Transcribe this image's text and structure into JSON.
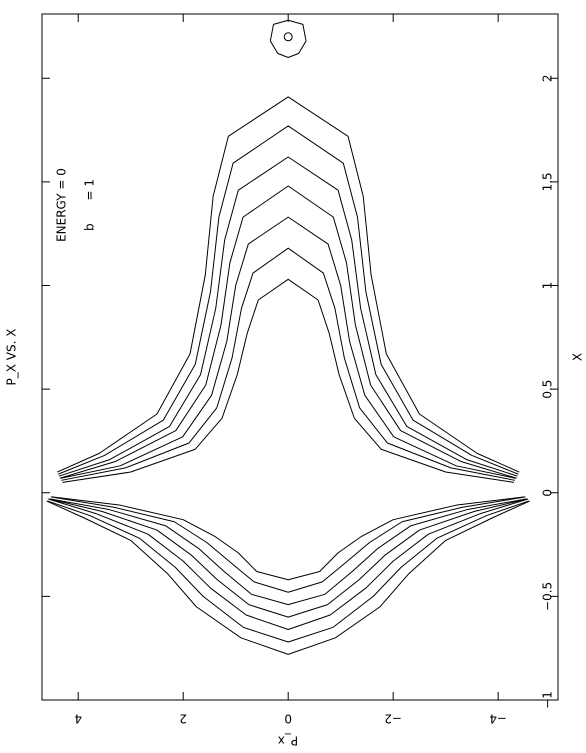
{
  "chart_data": {
    "type": "line",
    "title": "P_X VS. X",
    "x_label": "X",
    "y_label": "P_x",
    "annotations": [
      "ENERGY = 0",
      "b      = 1"
    ],
    "xlim": [
      -1,
      2.31
    ],
    "xticks": [
      {
        "value": -1,
        "label": "−1"
      },
      {
        "value": -0.5,
        "label": "−0.5"
      },
      0,
      0.5,
      1,
      1.5,
      2
    ],
    "ylim": [
      -5.14,
      4.69
    ],
    "yticks": [
      {
        "value": -4,
        "label": "−4"
      },
      {
        "value": -2,
        "label": "−2"
      },
      0,
      2,
      4
    ],
    "color": "#000000",
    "series": [
      {
        "x": [
          0.05,
          0.1,
          0.21,
          0.36,
          0.57,
          0.77,
          0.93,
          1.03,
          0.93,
          0.77,
          0.57,
          0.36,
          0.21,
          0.1,
          0.05
        ],
        "values": [
          4.3,
          3.0,
          1.77,
          1.26,
          0.97,
          0.78,
          0.57,
          0,
          -0.57,
          -0.78,
          -0.97,
          -1.26,
          -1.77,
          -3.0,
          -4.3
        ]
      },
      {
        "x": [
          0.06,
          0.12,
          0.24,
          0.41,
          0.65,
          0.89,
          1.06,
          1.18,
          1.06,
          0.89,
          0.65,
          0.41,
          0.24,
          0.12,
          0.06
        ],
        "values": [
          4.32,
          3.1,
          1.89,
          1.36,
          1.07,
          0.89,
          0.67,
          0,
          -0.67,
          -0.89,
          -1.07,
          -1.36,
          -1.89,
          -3.1,
          -4.32
        ]
      },
      {
        "x": [
          0.07,
          0.13,
          0.27,
          0.47,
          0.73,
          1.0,
          1.2,
          1.33,
          1.2,
          1.0,
          0.73,
          0.47,
          0.27,
          0.13,
          0.07
        ],
        "values": [
          4.33,
          3.2,
          2.01,
          1.46,
          1.17,
          1.0,
          0.76,
          0,
          -0.76,
          -1.0,
          -1.17,
          -1.46,
          -2.01,
          -3.2,
          -4.33
        ]
      },
      {
        "x": [
          0.07,
          0.15,
          0.3,
          0.52,
          0.81,
          1.11,
          1.33,
          1.48,
          1.33,
          1.11,
          0.81,
          0.52,
          0.3,
          0.15,
          0.07
        ],
        "values": [
          4.35,
          3.3,
          2.14,
          1.57,
          1.28,
          1.11,
          0.86,
          0,
          -0.86,
          -1.11,
          -1.28,
          -1.57,
          -2.14,
          -3.3,
          -4.35
        ]
      },
      {
        "x": [
          0.08,
          0.16,
          0.32,
          0.57,
          0.89,
          1.22,
          1.46,
          1.62,
          1.46,
          1.22,
          0.89,
          0.57,
          0.32,
          0.16,
          0.08
        ],
        "values": [
          4.37,
          3.4,
          2.26,
          1.67,
          1.38,
          1.21,
          0.95,
          0,
          -0.95,
          -1.21,
          -1.38,
          -1.67,
          -2.26,
          -3.4,
          -4.37
        ]
      },
      {
        "x": [
          0.09,
          0.18,
          0.35,
          0.62,
          0.97,
          1.33,
          1.59,
          1.77,
          1.59,
          1.33,
          0.97,
          0.62,
          0.35,
          0.18,
          0.09
        ],
        "values": [
          4.38,
          3.5,
          2.38,
          1.77,
          1.48,
          1.32,
          1.05,
          0,
          -1.05,
          -1.32,
          -1.48,
          -1.77,
          -2.38,
          -3.5,
          -4.38
        ]
      },
      {
        "x": [
          0.1,
          0.19,
          0.38,
          0.67,
          1.05,
          1.43,
          1.72,
          1.91,
          1.72,
          1.43,
          1.05,
          0.67,
          0.38,
          0.19,
          0.1
        ],
        "values": [
          4.4,
          3.6,
          2.5,
          1.87,
          1.58,
          1.43,
          1.14,
          0,
          -1.14,
          -1.43,
          -1.58,
          -1.87,
          -2.5,
          -3.6,
          -4.4
        ]
      },
      {
        "x": [
          -0.02,
          -0.06,
          -0.13,
          -0.21,
          -0.29,
          -0.38,
          -0.42,
          -0.38,
          -0.29,
          -0.21,
          -0.13,
          -0.06,
          -0.02
        ],
        "values": [
          4.5,
          3.2,
          2.0,
          1.4,
          0.95,
          0.6,
          0,
          -0.6,
          -0.95,
          -1.4,
          -2.0,
          -3.2,
          -4.5
        ]
      },
      {
        "x": [
          -0.02,
          -0.07,
          -0.14,
          -0.24,
          -0.34,
          -0.43,
          -0.48,
          -0.43,
          -0.34,
          -0.24,
          -0.14,
          -0.07,
          -0.02
        ],
        "values": [
          4.52,
          3.32,
          2.17,
          1.55,
          1.08,
          0.65,
          0,
          -0.65,
          -1.08,
          -1.55,
          -2.17,
          -3.32,
          -4.52
        ]
      },
      {
        "x": [
          -0.03,
          -0.08,
          -0.16,
          -0.27,
          -0.38,
          -0.49,
          -0.54,
          -0.49,
          -0.38,
          -0.27,
          -0.16,
          -0.08,
          -0.03
        ],
        "values": [
          4.53,
          3.43,
          2.33,
          1.7,
          1.22,
          0.7,
          0,
          -0.7,
          -1.22,
          -1.7,
          -2.33,
          -3.43,
          -4.53
        ]
      },
      {
        "x": [
          -0.03,
          -0.09,
          -0.18,
          -0.3,
          -0.42,
          -0.54,
          -0.6,
          -0.54,
          -0.42,
          -0.3,
          -0.18,
          -0.09,
          -0.03
        ],
        "values": [
          4.55,
          3.55,
          2.5,
          1.85,
          1.35,
          0.75,
          0,
          -0.75,
          -1.35,
          -1.85,
          -2.5,
          -3.55,
          -4.55
        ]
      },
      {
        "x": [
          -0.03,
          -0.1,
          -0.2,
          -0.33,
          -0.46,
          -0.59,
          -0.66,
          -0.59,
          -0.46,
          -0.33,
          -0.2,
          -0.1,
          -0.03
        ],
        "values": [
          4.57,
          3.67,
          2.67,
          2.0,
          1.48,
          0.8,
          0,
          -0.8,
          -1.48,
          -2.0,
          -2.67,
          -3.67,
          -4.57
        ]
      },
      {
        "x": [
          -0.04,
          -0.11,
          -0.22,
          -0.36,
          -0.5,
          -0.65,
          -0.72,
          -0.65,
          -0.5,
          -0.36,
          -0.22,
          -0.11,
          -0.04
        ],
        "values": [
          4.58,
          3.78,
          2.83,
          2.15,
          1.62,
          0.85,
          0,
          -0.85,
          -1.62,
          -2.15,
          -2.83,
          -3.78,
          -4.58
        ]
      },
      {
        "x": [
          -0.04,
          -0.12,
          -0.23,
          -0.39,
          -0.55,
          -0.7,
          -0.78,
          -0.7,
          -0.55,
          -0.39,
          -0.23,
          -0.12,
          -0.04
        ],
        "values": [
          4.6,
          3.9,
          3.0,
          2.3,
          1.75,
          0.9,
          0,
          -0.9,
          -1.75,
          -2.3,
          -3.0,
          -3.9,
          -4.6
        ]
      },
      {
        "x": [
          2.28,
          2.26,
          2.18,
          2.12,
          2.1,
          2.12,
          2.18,
          2.26,
          2.28
        ],
        "values": [
          0,
          0.28,
          0.34,
          0.2,
          0,
          -0.2,
          -0.34,
          -0.28,
          0
        ]
      },
      {
        "x": [
          2.2
        ],
        "values": [
          0
        ],
        "mode": "markers"
      }
    ]
  }
}
